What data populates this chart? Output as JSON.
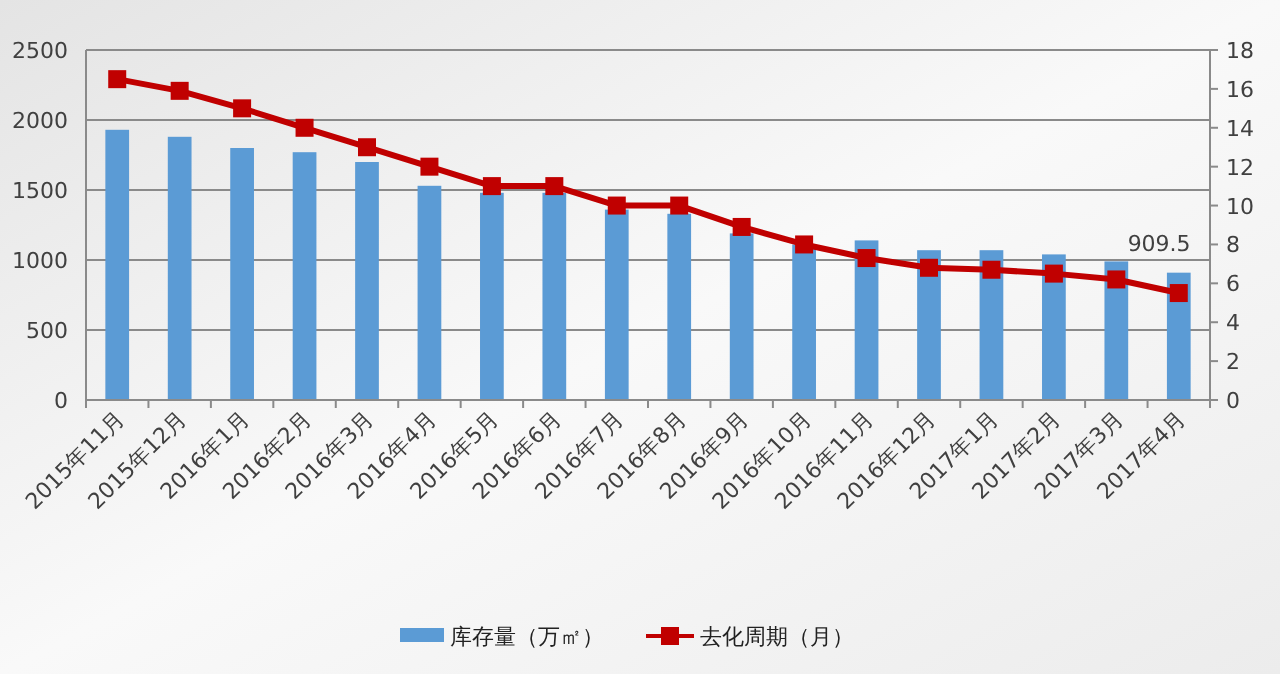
{
  "chart_data": {
    "type": "bar",
    "categories": [
      "2015年11月",
      "2015年12月",
      "2016年1月",
      "2016年2月",
      "2016年3月",
      "2016年4月",
      "2016年5月",
      "2016年6月",
      "2016年7月",
      "2016年8月",
      "2016年9月",
      "2016年10月",
      "2016年11月",
      "2016年12月",
      "2017年1月",
      "2017年2月",
      "2017年3月",
      "2017年4月"
    ],
    "series": [
      {
        "name": "库存量（万㎡）",
        "color": "#5b9bd5",
        "values": [
          1930,
          1880,
          1800,
          1770,
          1700,
          1530,
          1480,
          1480,
          1360,
          1330,
          1190,
          1110,
          1140,
          1070,
          1070,
          1040,
          990,
          909.5
        ],
        "value_labels": [
          null,
          null,
          null,
          null,
          null,
          null,
          null,
          null,
          null,
          null,
          null,
          null,
          null,
          null,
          null,
          null,
          null,
          "909.5"
        ]
      },
      {
        "name": "去化周期（月）",
        "type": "line",
        "axis": "y2",
        "color": "#c00000",
        "marker": "square",
        "values": [
          16.5,
          15.9,
          15.0,
          14.0,
          13.0,
          12.0,
          11.0,
          11.0,
          10.0,
          10.0,
          8.9,
          8.0,
          7.3,
          6.8,
          6.7,
          6.5,
          6.2,
          5.5
        ]
      }
    ],
    "ylim": [
      0,
      2500
    ],
    "yticks": [
      0,
      500,
      1000,
      1500,
      2000,
      2500
    ],
    "y2lim": [
      0,
      18
    ],
    "y2ticks": [
      0,
      2,
      4,
      6,
      8,
      10,
      12,
      14,
      16,
      18
    ],
    "grid": "y",
    "legend": "bottom"
  }
}
